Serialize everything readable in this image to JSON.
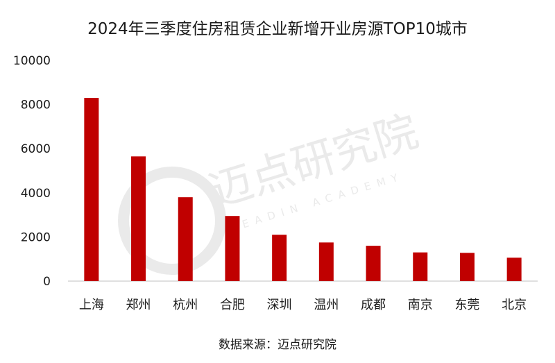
{
  "title": "2024年三季度住房租赁企业新增开业房源TOP10城市",
  "source": "数据来源：迈点研究院",
  "watermark": {
    "name": "迈点研究院",
    "subtitle": "MEADIN ACADEMY"
  },
  "colors": {
    "bar": "#c00000",
    "axis": "#bfbfbf",
    "watermark": "#d9d9d9"
  },
  "chart_data": {
    "type": "bar",
    "title": "2024年三季度住房租赁企业新增开业房源TOP10城市",
    "xlabel": "",
    "ylabel": "",
    "categories": [
      "上海",
      "郑州",
      "杭州",
      "合肥",
      "深圳",
      "温州",
      "成都",
      "南京",
      "东莞",
      "北京"
    ],
    "values": [
      8300,
      5650,
      3800,
      2950,
      2100,
      1750,
      1600,
      1300,
      1280,
      1060
    ],
    "ylim": [
      0,
      10000
    ],
    "yticks": [
      0,
      2000,
      4000,
      6000,
      8000,
      10000
    ],
    "grid": false,
    "legend": "none"
  }
}
